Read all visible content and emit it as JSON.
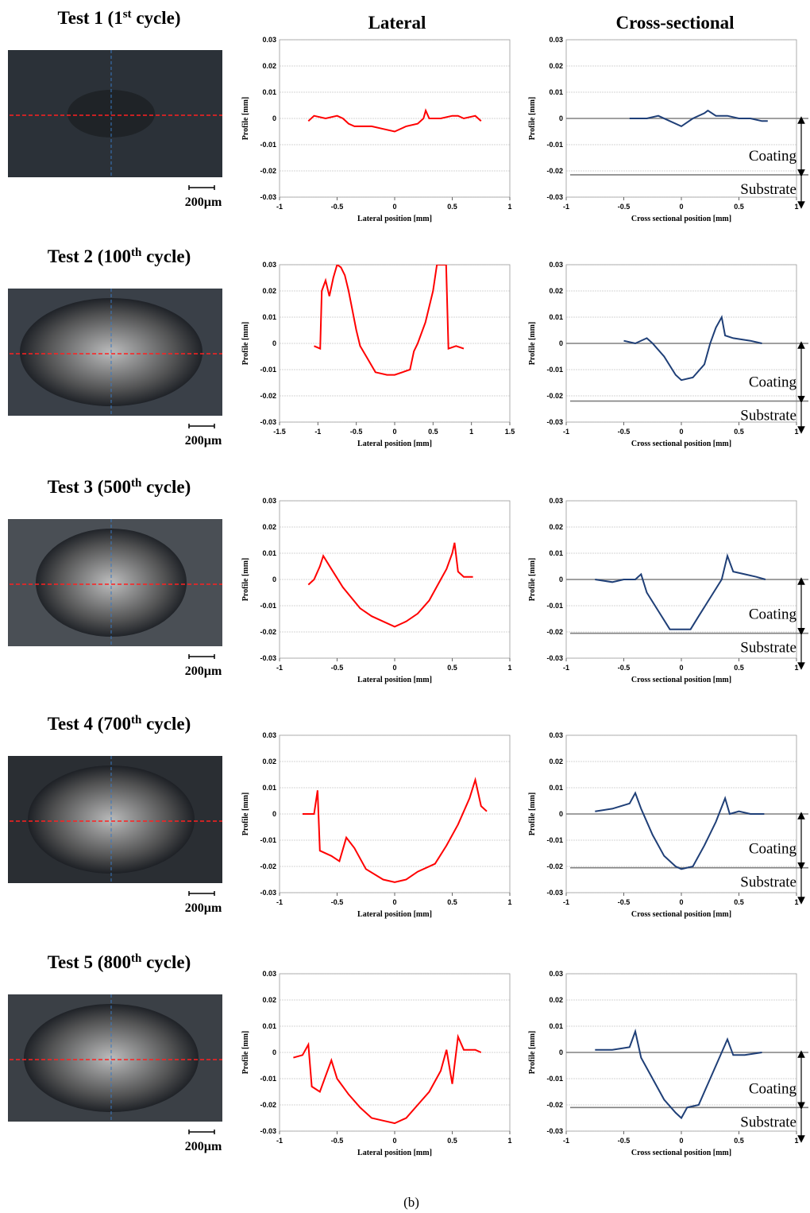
{
  "columns": [
    "Lateral",
    "Cross-sectional"
  ],
  "caption": "(b)",
  "panels": [
    {
      "title": [
        "Test 1 (1",
        "st",
        " cycle)"
      ],
      "scale": "200µm"
    },
    {
      "title": [
        "Test 2 (100",
        "th",
        " cycle)"
      ],
      "scale": "200µm"
    },
    {
      "title": [
        "Test 3 (500",
        "th",
        " cycle)"
      ],
      "scale": "200µm"
    },
    {
      "title": [
        "Test 4 (700",
        "th",
        " cycle)"
      ],
      "scale": "200µm"
    },
    {
      "title": [
        "Test 5 (800",
        "th",
        " cycle)"
      ],
      "scale": "200µm"
    }
  ],
  "chart_data": [
    {
      "type": "line",
      "ylabel": "Profile [mm]",
      "xlabel": "Lateral position [mm]",
      "color": "#ff0000",
      "xlim": [
        -1,
        1
      ],
      "xticks": [
        -1,
        -0.5,
        0,
        0.5,
        1
      ],
      "ylim": [
        -0.03,
        0.03
      ],
      "yticks": [
        0.03,
        0.02,
        0.01,
        0,
        -0.01,
        -0.02,
        -0.03
      ],
      "grid": true,
      "x": [
        -0.75,
        -0.7,
        -0.6,
        -0.5,
        -0.45,
        -0.4,
        -0.35,
        -0.3,
        -0.2,
        -0.1,
        0,
        0.1,
        0.2,
        0.25,
        0.27,
        0.3,
        0.4,
        0.5,
        0.55,
        0.6,
        0.7,
        0.75
      ],
      "values": [
        -0.001,
        0.001,
        0,
        0.001,
        0,
        -0.002,
        -0.003,
        -0.003,
        -0.003,
        -0.004,
        -0.005,
        -0.003,
        -0.002,
        0,
        0.003,
        0,
        0,
        0.001,
        0.001,
        0,
        0.001,
        -0.001
      ]
    },
    {
      "type": "line",
      "ylabel": "Profile [mm]",
      "xlabel": "Cross sectional position [mm]",
      "color": "#1f3f77",
      "xlim": [
        -1,
        1
      ],
      "xticks": [
        -1,
        -0.5,
        0,
        0.5,
        1
      ],
      "ylim": [
        -0.03,
        0.03
      ],
      "yticks": [
        0.03,
        0.02,
        0.01,
        0,
        -0.01,
        -0.02,
        -0.03
      ],
      "grid": true,
      "hlines": [
        0,
        -0.0215
      ],
      "coating_label": "Coating",
      "substrate_label": "Substrate",
      "x": [
        -0.45,
        -0.4,
        -0.3,
        -0.2,
        -0.1,
        0,
        0.1,
        0.2,
        0.23,
        0.3,
        0.4,
        0.5,
        0.6,
        0.7,
        0.75
      ],
      "values": [
        0,
        0,
        0,
        0.001,
        -0.001,
        -0.003,
        0,
        0.002,
        0.003,
        0.001,
        0.001,
        0,
        0,
        -0.001,
        -0.001
      ]
    },
    {
      "type": "line",
      "ylabel": "Profile [mm]",
      "xlabel": "Lateral position [mm]",
      "color": "#ff0000",
      "xlim": [
        -1.5,
        1.5
      ],
      "xticks": [
        -1.5,
        -1,
        -0.5,
        0,
        0.5,
        1,
        1.5
      ],
      "ylim": [
        -0.03,
        0.03
      ],
      "yticks": [
        0.03,
        0.02,
        0.01,
        0,
        -0.01,
        -0.02,
        -0.03
      ],
      "grid": true,
      "x": [
        -1.05,
        -0.97,
        -0.95,
        -0.9,
        -0.85,
        -0.8,
        -0.75,
        -0.7,
        -0.65,
        -0.6,
        -0.5,
        -0.45,
        -0.35,
        -0.25,
        -0.1,
        0,
        0.1,
        0.2,
        0.25,
        0.3,
        0.4,
        0.5,
        0.55,
        0.67,
        0.7,
        0.8,
        0.9
      ],
      "values": [
        -0.001,
        -0.002,
        0.02,
        0.024,
        0.018,
        0.025,
        0.03,
        0.029,
        0.026,
        0.02,
        0.005,
        -0.001,
        -0.006,
        -0.011,
        -0.012,
        -0.012,
        -0.011,
        -0.01,
        -0.003,
        0,
        0.008,
        0.02,
        0.03,
        0.03,
        -0.002,
        -0.001,
        -0.002
      ]
    },
    {
      "type": "line",
      "ylabel": "Profile [mm]",
      "xlabel": "Cross sectional position [mm]",
      "color": "#1f3f77",
      "xlim": [
        -1,
        1
      ],
      "xticks": [
        -1,
        -0.5,
        0,
        0.5,
        1
      ],
      "ylim": [
        -0.03,
        0.03
      ],
      "yticks": [
        0.03,
        0.02,
        0.01,
        0,
        -0.01,
        -0.02,
        -0.03
      ],
      "grid": true,
      "hlines": [
        0,
        -0.022
      ],
      "coating_label": "Coating",
      "substrate_label": "Substrate",
      "x": [
        -0.5,
        -0.4,
        -0.3,
        -0.25,
        -0.15,
        -0.05,
        0,
        0.1,
        0.2,
        0.25,
        0.3,
        0.35,
        0.38,
        0.45,
        0.6,
        0.7
      ],
      "values": [
        0.001,
        0,
        0.002,
        0,
        -0.005,
        -0.012,
        -0.014,
        -0.013,
        -0.008,
        0,
        0.006,
        0.01,
        0.003,
        0.002,
        0.001,
        0
      ]
    },
    {
      "type": "line",
      "ylabel": "Profile [mm]",
      "xlabel": "Lateral position [mm]",
      "color": "#ff0000",
      "xlim": [
        -1,
        1
      ],
      "xticks": [
        -1,
        -0.5,
        0,
        0.5,
        1
      ],
      "ylim": [
        -0.03,
        0.03
      ],
      "yticks": [
        0.03,
        0.02,
        0.01,
        0,
        -0.01,
        -0.02,
        -0.03
      ],
      "grid": true,
      "x": [
        -0.75,
        -0.7,
        -0.65,
        -0.62,
        -0.55,
        -0.45,
        -0.3,
        -0.2,
        -0.1,
        0,
        0.1,
        0.2,
        0.3,
        0.4,
        0.45,
        0.5,
        0.52,
        0.55,
        0.6,
        0.68
      ],
      "values": [
        -0.002,
        0,
        0.005,
        0.009,
        0.004,
        -0.003,
        -0.011,
        -0.014,
        -0.016,
        -0.018,
        -0.016,
        -0.013,
        -0.008,
        0,
        0.004,
        0.01,
        0.014,
        0.003,
        0.001,
        0.001
      ]
    },
    {
      "type": "line",
      "ylabel": "Profile [mm]",
      "xlabel": "Cross sectional position [mm]",
      "color": "#1f3f77",
      "xlim": [
        -1,
        1
      ],
      "xticks": [
        -1,
        -0.5,
        0,
        0.5,
        1
      ],
      "ylim": [
        -0.03,
        0.03
      ],
      "yticks": [
        0.03,
        0.02,
        0.01,
        0,
        -0.01,
        -0.02,
        -0.03
      ],
      "grid": true,
      "hlines": [
        0,
        -0.0205
      ],
      "coating_label": "Coating",
      "substrate_label": "Substrate",
      "x": [
        -0.75,
        -0.6,
        -0.5,
        -0.4,
        -0.35,
        -0.3,
        -0.2,
        -0.1,
        0,
        0.08,
        0.15,
        0.25,
        0.35,
        0.4,
        0.45,
        0.55,
        0.65,
        0.73
      ],
      "values": [
        0,
        -0.001,
        0,
        0,
        0.002,
        -0.005,
        -0.012,
        -0.019,
        -0.019,
        -0.019,
        -0.014,
        -0.007,
        0,
        0.009,
        0.003,
        0.002,
        0.001,
        0
      ]
    },
    {
      "type": "line",
      "ylabel": "Profile [mm]",
      "xlabel": "Lateral position [mm]",
      "color": "#ff0000",
      "xlim": [
        -1,
        1
      ],
      "xticks": [
        -1,
        -0.5,
        0,
        0.5,
        1
      ],
      "ylim": [
        -0.03,
        0.03
      ],
      "yticks": [
        0.03,
        0.02,
        0.01,
        0,
        -0.01,
        -0.02,
        -0.03
      ],
      "grid": true,
      "x": [
        -0.8,
        -0.7,
        -0.67,
        -0.65,
        -0.55,
        -0.48,
        -0.42,
        -0.35,
        -0.25,
        -0.1,
        0,
        0.1,
        0.2,
        0.35,
        0.45,
        0.55,
        0.65,
        0.7,
        0.75,
        0.8
      ],
      "values": [
        0,
        0,
        0.009,
        -0.014,
        -0.016,
        -0.018,
        -0.009,
        -0.013,
        -0.021,
        -0.025,
        -0.026,
        -0.025,
        -0.022,
        -0.019,
        -0.012,
        -0.004,
        0.006,
        0.013,
        0.003,
        0.001
      ]
    },
    {
      "type": "line",
      "ylabel": "Profile [mm]",
      "xlabel": "Cross sectional position [mm]",
      "color": "#1f3f77",
      "xlim": [
        -1,
        1
      ],
      "xticks": [
        -1,
        -0.5,
        0,
        0.5,
        1
      ],
      "ylim": [
        -0.03,
        0.03
      ],
      "yticks": [
        0.03,
        0.02,
        0.01,
        0,
        -0.01,
        -0.02,
        -0.03
      ],
      "grid": true,
      "hlines": [
        0,
        -0.0205
      ],
      "coating_label": "Coating",
      "substrate_label": "Substrate",
      "x": [
        -0.75,
        -0.6,
        -0.45,
        -0.4,
        -0.35,
        -0.25,
        -0.15,
        -0.05,
        0,
        0.1,
        0.2,
        0.3,
        0.38,
        0.42,
        0.5,
        0.6,
        0.72
      ],
      "values": [
        0.001,
        0.002,
        0.004,
        0.008,
        0.002,
        -0.008,
        -0.016,
        -0.02,
        -0.021,
        -0.02,
        -0.012,
        -0.003,
        0.006,
        0,
        0.001,
        0,
        0
      ]
    },
    {
      "type": "line",
      "ylabel": "Profile [mm]",
      "xlabel": "Lateral position [mm]",
      "color": "#ff0000",
      "xlim": [
        -1,
        1
      ],
      "xticks": [
        -1,
        -0.5,
        0,
        0.5,
        1
      ],
      "ylim": [
        -0.03,
        0.03
      ],
      "yticks": [
        0.03,
        0.02,
        0.01,
        0,
        -0.01,
        -0.02,
        -0.03
      ],
      "grid": true,
      "x": [
        -0.88,
        -0.8,
        -0.75,
        -0.72,
        -0.65,
        -0.6,
        -0.55,
        -0.5,
        -0.4,
        -0.3,
        -0.2,
        -0.1,
        0,
        0.1,
        0.2,
        0.3,
        0.4,
        0.45,
        0.5,
        0.55,
        0.6,
        0.7,
        0.75
      ],
      "values": [
        -0.002,
        -0.001,
        0.003,
        -0.013,
        -0.015,
        -0.009,
        -0.003,
        -0.01,
        -0.016,
        -0.021,
        -0.025,
        -0.026,
        -0.027,
        -0.025,
        -0.02,
        -0.015,
        -0.007,
        0.001,
        -0.012,
        0.006,
        0.001,
        0.001,
        0
      ]
    },
    {
      "type": "line",
      "ylabel": "Profile [mm]",
      "xlabel": "Cross sectional position [mm]",
      "color": "#1f3f77",
      "xlim": [
        -1,
        1
      ],
      "xticks": [
        -1,
        -0.5,
        0,
        0.5,
        1
      ],
      "ylim": [
        -0.03,
        0.03
      ],
      "yticks": [
        0.03,
        0.02,
        0.01,
        0,
        -0.01,
        -0.02,
        -0.03
      ],
      "grid": true,
      "hlines": [
        0,
        -0.021
      ],
      "coating_label": "Coating",
      "substrate_label": "Substrate",
      "x": [
        -0.75,
        -0.6,
        -0.45,
        -0.4,
        -0.35,
        -0.25,
        -0.15,
        -0.05,
        0,
        0.05,
        0.15,
        0.25,
        0.35,
        0.4,
        0.45,
        0.55,
        0.7
      ],
      "values": [
        0.001,
        0.001,
        0.002,
        0.008,
        -0.002,
        -0.01,
        -0.018,
        -0.023,
        -0.025,
        -0.021,
        -0.02,
        -0.01,
        0,
        0.005,
        -0.001,
        -0.001,
        0
      ]
    }
  ]
}
